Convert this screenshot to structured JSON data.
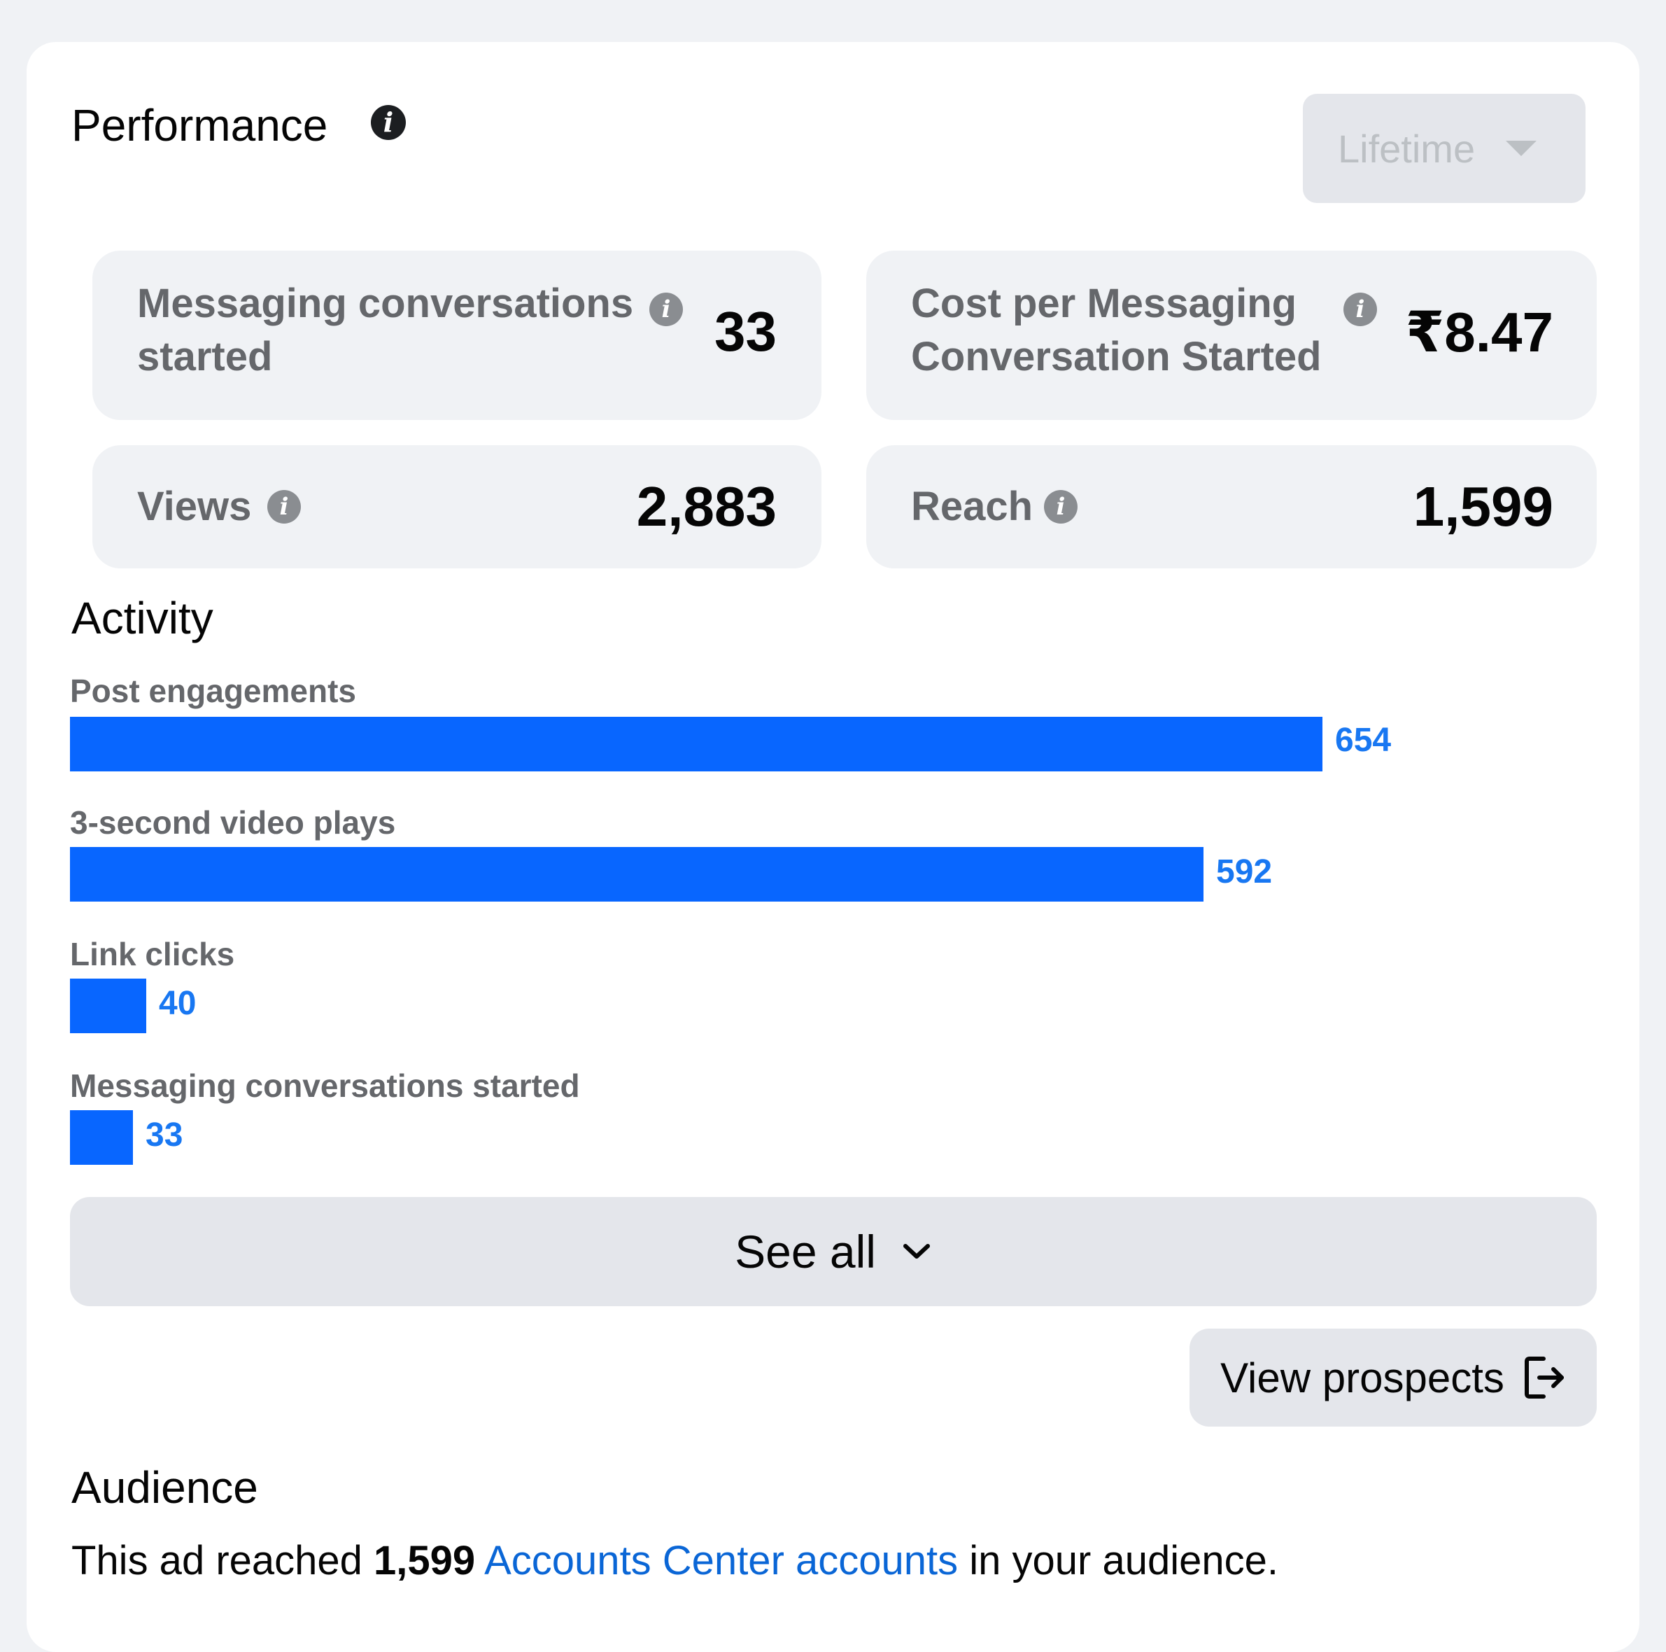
{
  "performance": {
    "title": "Performance",
    "period_selector": "Lifetime"
  },
  "metrics": [
    {
      "label_line1": "Messaging conversations",
      "label_line2": "started",
      "value": "33"
    },
    {
      "label_line1": "Cost per Messaging",
      "label_line2": "Conversation Started",
      "value": "₹8.47"
    },
    {
      "label_line1": "Views",
      "label_line2": "",
      "value": "2,883"
    },
    {
      "label_line1": "Reach",
      "label_line2": "",
      "value": "1,599"
    }
  ],
  "activity": {
    "title": "Activity",
    "items": [
      {
        "label": "Post engagements",
        "value": 654,
        "value_text": "654"
      },
      {
        "label": "3-second video plays",
        "value": 592,
        "value_text": "592"
      },
      {
        "label": "Link clicks",
        "value": 40,
        "value_text": "40"
      },
      {
        "label": "Messaging conversations started",
        "value": 33,
        "value_text": "33"
      }
    ],
    "see_all_label": "See all",
    "view_prospects_label": "View prospects"
  },
  "audience": {
    "title": "Audience",
    "text_before": "This ad reached ",
    "count": "1,599",
    "link_text": "Accounts Center accounts",
    "text_after": " in your audience."
  },
  "colors": {
    "bar": "#0866ff",
    "value_link": "#1877f2",
    "tile_bg": "#f0f2f5"
  }
}
